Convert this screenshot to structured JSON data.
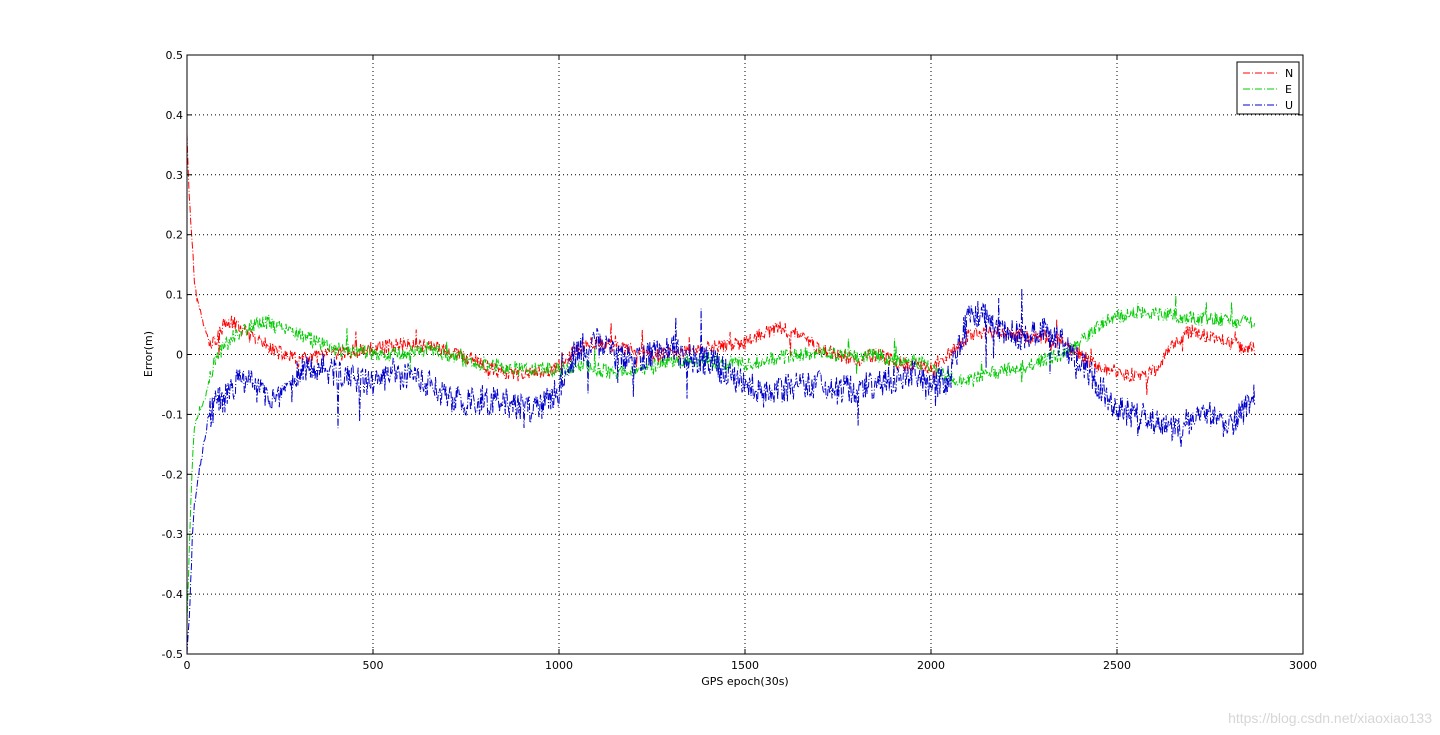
{
  "chart_data": {
    "type": "line",
    "xlabel": "GPS epoch(30s)",
    "ylabel": "Error(m)",
    "xlim": [
      0,
      3000
    ],
    "ylim": [
      -0.5,
      0.5
    ],
    "x_ticks": [
      0,
      500,
      1000,
      1500,
      2000,
      2500,
      3000
    ],
    "y_ticks": [
      -0.5,
      -0.4,
      -0.3,
      -0.2,
      -0.1,
      0,
      0.1,
      0.2,
      0.3,
      0.4,
      0.5
    ],
    "x_tick_labels": [
      "0",
      "500",
      "1000",
      "1500",
      "2000",
      "2500",
      "3000"
    ],
    "y_tick_labels": [
      "-0.5",
      "-0.4",
      "-0.3",
      "-0.2",
      "-0.1",
      "0",
      "0.1",
      "0.2",
      "0.3",
      "0.4",
      "0.5"
    ],
    "grid": true,
    "legend_position": "top-right",
    "line_style": "dash-dot",
    "series": [
      {
        "name": "N",
        "color": "#ff0000",
        "x": [
          0,
          5,
          10,
          15,
          20,
          30,
          40,
          50,
          60,
          70,
          80,
          100,
          120,
          140,
          160,
          180,
          200,
          220,
          240,
          260,
          280,
          300,
          320,
          340,
          360,
          400,
          450,
          500,
          550,
          600,
          650,
          700,
          750,
          800,
          850,
          900,
          950,
          1000,
          1050,
          1100,
          1150,
          1200,
          1250,
          1300,
          1350,
          1400,
          1450,
          1500,
          1550,
          1600,
          1650,
          1700,
          1750,
          1800,
          1850,
          1900,
          1950,
          2000,
          2050,
          2100,
          2150,
          2200,
          2250,
          2300,
          2350,
          2400,
          2450,
          2500,
          2550,
          2600,
          2650,
          2700,
          2750,
          2800,
          2850,
          2870
        ],
        "y": [
          0.37,
          0.28,
          0.22,
          0.18,
          0.12,
          0.09,
          0.06,
          0.04,
          0.025,
          0.02,
          0.025,
          0.05,
          0.055,
          0.045,
          0.035,
          0.025,
          0.02,
          0.015,
          0.005,
          0.0,
          -0.005,
          -0.01,
          -0.008,
          -0.005,
          -0.003,
          0.0,
          0.005,
          0.01,
          0.015,
          0.018,
          0.015,
          0.005,
          -0.005,
          -0.02,
          -0.03,
          -0.035,
          -0.03,
          -0.02,
          0.01,
          0.02,
          0.015,
          0.005,
          0.0,
          0.0,
          0.005,
          0.01,
          0.015,
          0.02,
          0.035,
          0.045,
          0.03,
          0.01,
          0.0,
          -0.01,
          0.0,
          -0.01,
          -0.02,
          -0.02,
          0.0,
          0.03,
          0.04,
          0.035,
          0.03,
          0.03,
          0.02,
          0.0,
          -0.02,
          -0.03,
          -0.035,
          -0.03,
          0.02,
          0.04,
          0.03,
          0.02,
          0.01,
          0.01
        ],
        "noise": 0.012
      },
      {
        "name": "E",
        "color": "#00cc00",
        "x": [
          0,
          5,
          10,
          15,
          20,
          30,
          40,
          50,
          60,
          80,
          100,
          120,
          150,
          180,
          200,
          220,
          250,
          280,
          300,
          350,
          400,
          450,
          500,
          550,
          600,
          650,
          700,
          750,
          800,
          850,
          900,
          950,
          1000,
          1050,
          1100,
          1150,
          1200,
          1250,
          1300,
          1350,
          1400,
          1450,
          1500,
          1550,
          1600,
          1650,
          1700,
          1750,
          1800,
          1850,
          1900,
          1950,
          2000,
          2050,
          2100,
          2150,
          2200,
          2250,
          2300,
          2350,
          2400,
          2450,
          2500,
          2550,
          2600,
          2650,
          2700,
          2750,
          2800,
          2850,
          2870
        ],
        "y": [
          -0.45,
          -0.35,
          -0.25,
          -0.17,
          -0.12,
          -0.1,
          -0.09,
          -0.07,
          -0.04,
          -0.005,
          0.015,
          0.03,
          0.04,
          0.05,
          0.055,
          0.052,
          0.045,
          0.04,
          0.035,
          0.02,
          0.01,
          0.005,
          0.003,
          0.0,
          0.005,
          0.01,
          0.0,
          -0.01,
          -0.015,
          -0.02,
          -0.025,
          -0.025,
          -0.025,
          -0.02,
          -0.025,
          -0.03,
          -0.025,
          -0.02,
          -0.01,
          -0.01,
          -0.01,
          -0.015,
          -0.015,
          -0.01,
          -0.005,
          0.0,
          0.005,
          0.0,
          -0.005,
          0.0,
          -0.01,
          -0.01,
          -0.02,
          -0.04,
          -0.045,
          -0.035,
          -0.025,
          -0.02,
          -0.01,
          0.0,
          0.02,
          0.05,
          0.065,
          0.07,
          0.07,
          0.065,
          0.06,
          0.06,
          0.055,
          0.055,
          0.055
        ],
        "noise": 0.012
      },
      {
        "name": "U",
        "color": "#0000cc",
        "x": [
          0,
          5,
          10,
          15,
          20,
          30,
          40,
          50,
          60,
          80,
          100,
          130,
          150,
          200,
          250,
          280,
          300,
          330,
          350,
          400,
          450,
          500,
          550,
          600,
          650,
          700,
          750,
          800,
          850,
          900,
          950,
          1000,
          1050,
          1100,
          1150,
          1200,
          1250,
          1300,
          1350,
          1400,
          1450,
          1500,
          1550,
          1600,
          1650,
          1700,
          1750,
          1800,
          1850,
          1900,
          1950,
          2000,
          2050,
          2080,
          2100,
          2150,
          2200,
          2250,
          2300,
          2350,
          2400,
          2450,
          2500,
          2550,
          2600,
          2650,
          2700,
          2750,
          2800,
          2850,
          2870
        ],
        "y": [
          -0.5,
          -0.45,
          -0.38,
          -0.3,
          -0.25,
          -0.2,
          -0.17,
          -0.13,
          -0.1,
          -0.08,
          -0.075,
          -0.05,
          -0.04,
          -0.06,
          -0.08,
          -0.06,
          -0.03,
          -0.015,
          -0.02,
          -0.03,
          -0.04,
          -0.05,
          -0.03,
          -0.04,
          -0.05,
          -0.07,
          -0.08,
          -0.075,
          -0.08,
          -0.09,
          -0.09,
          -0.06,
          0.01,
          0.02,
          0.0,
          -0.01,
          0.0,
          0.01,
          -0.005,
          -0.01,
          -0.03,
          -0.05,
          -0.06,
          -0.055,
          -0.05,
          -0.05,
          -0.06,
          -0.055,
          -0.05,
          -0.04,
          -0.03,
          -0.05,
          -0.04,
          0.02,
          0.07,
          0.06,
          0.04,
          0.03,
          0.04,
          0.02,
          -0.01,
          -0.05,
          -0.09,
          -0.1,
          -0.11,
          -0.12,
          -0.11,
          -0.1,
          -0.12,
          -0.09,
          -0.07
        ],
        "noise": 0.025
      }
    ]
  },
  "watermark": "https://blog.csdn.net/xiaoxiao133"
}
